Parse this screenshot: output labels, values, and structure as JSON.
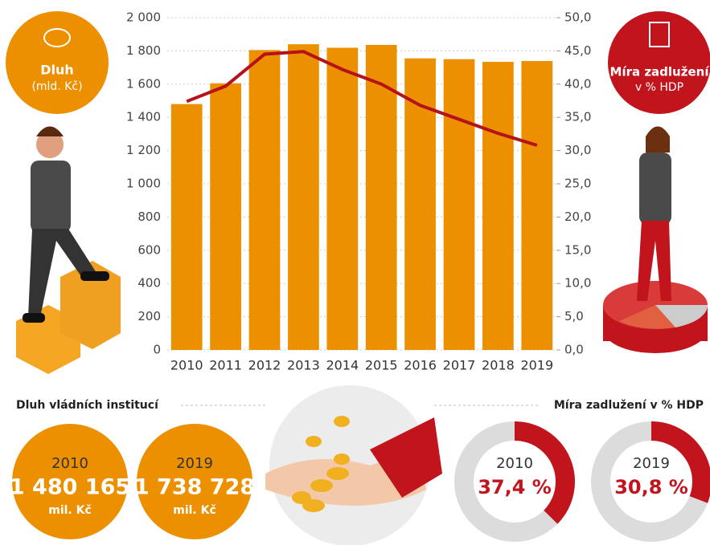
{
  "chart_data": [
    {
      "type": "combo",
      "categories": [
        "2010",
        "2011",
        "2012",
        "2013",
        "2014",
        "2015",
        "2016",
        "2017",
        "2018",
        "2019"
      ],
      "series": [
        {
          "type": "bar",
          "color": "#ec9000",
          "values": [
            1480,
            1605,
            1805,
            1840,
            1819,
            1836,
            1755,
            1750,
            1734,
            1739
          ]
        },
        {
          "type": "line",
          "axis": "y2",
          "color": "#b5121b",
          "values": [
            37.4,
            39.7,
            44.5,
            44.9,
            42.2,
            40.0,
            36.8,
            34.7,
            32.6,
            30.8
          ]
        }
      ],
      "ylim": [
        0,
        2000
      ],
      "yticks": [
        0,
        200,
        400,
        600,
        800,
        {
          "value": 1000,
          "label": "1 000"
        },
        {
          "value": 1200,
          "label": "1 200"
        },
        {
          "value": 1400,
          "label": "1 400"
        },
        {
          "value": 1600,
          "label": "1 600"
        },
        {
          "value": 1800,
          "label": "1 800"
        },
        {
          "value": 2000,
          "label": "2 000"
        }
      ],
      "y2lim": [
        0,
        50
      ],
      "y2ticks": [
        {
          "value": 0,
          "label": "0,0"
        },
        {
          "value": 5,
          "label": "5,0"
        },
        {
          "value": 10,
          "label": "10,0"
        },
        {
          "value": 15,
          "label": "15,0"
        },
        {
          "value": 20,
          "label": "20,0"
        },
        {
          "value": 25,
          "label": "25,0"
        },
        {
          "value": 30,
          "label": "30,0"
        },
        {
          "value": 35,
          "label": "35,0"
        },
        {
          "value": 40,
          "label": "40,0"
        },
        {
          "value": 45,
          "label": "45,0"
        },
        {
          "value": 50,
          "label": "50,0"
        }
      ],
      "grid": true
    },
    {
      "type": "donut",
      "title": "Míra zadlužení v % HDP",
      "categories": [
        "2010",
        "2019"
      ],
      "values": [
        37.4,
        30.8
      ],
      "value_labels": [
        "37,4 %",
        "30,8 %"
      ],
      "color": "#c1141d",
      "track_color": "#dcdcdc"
    }
  ],
  "left_badge": {
    "title": "Dluh",
    "subtitle": "(mld. Kč)"
  },
  "right_badge": {
    "title": "Míra zadlužení",
    "subtitle": "v % HDP"
  },
  "debt_summary": {
    "title": "Dluh vládních institucí",
    "items": [
      {
        "year": "2010",
        "amount": "1 480 165",
        "unit": "mil. Kč"
      },
      {
        "year": "2019",
        "amount": "1 738 728",
        "unit": "mil. Kč"
      }
    ]
  }
}
